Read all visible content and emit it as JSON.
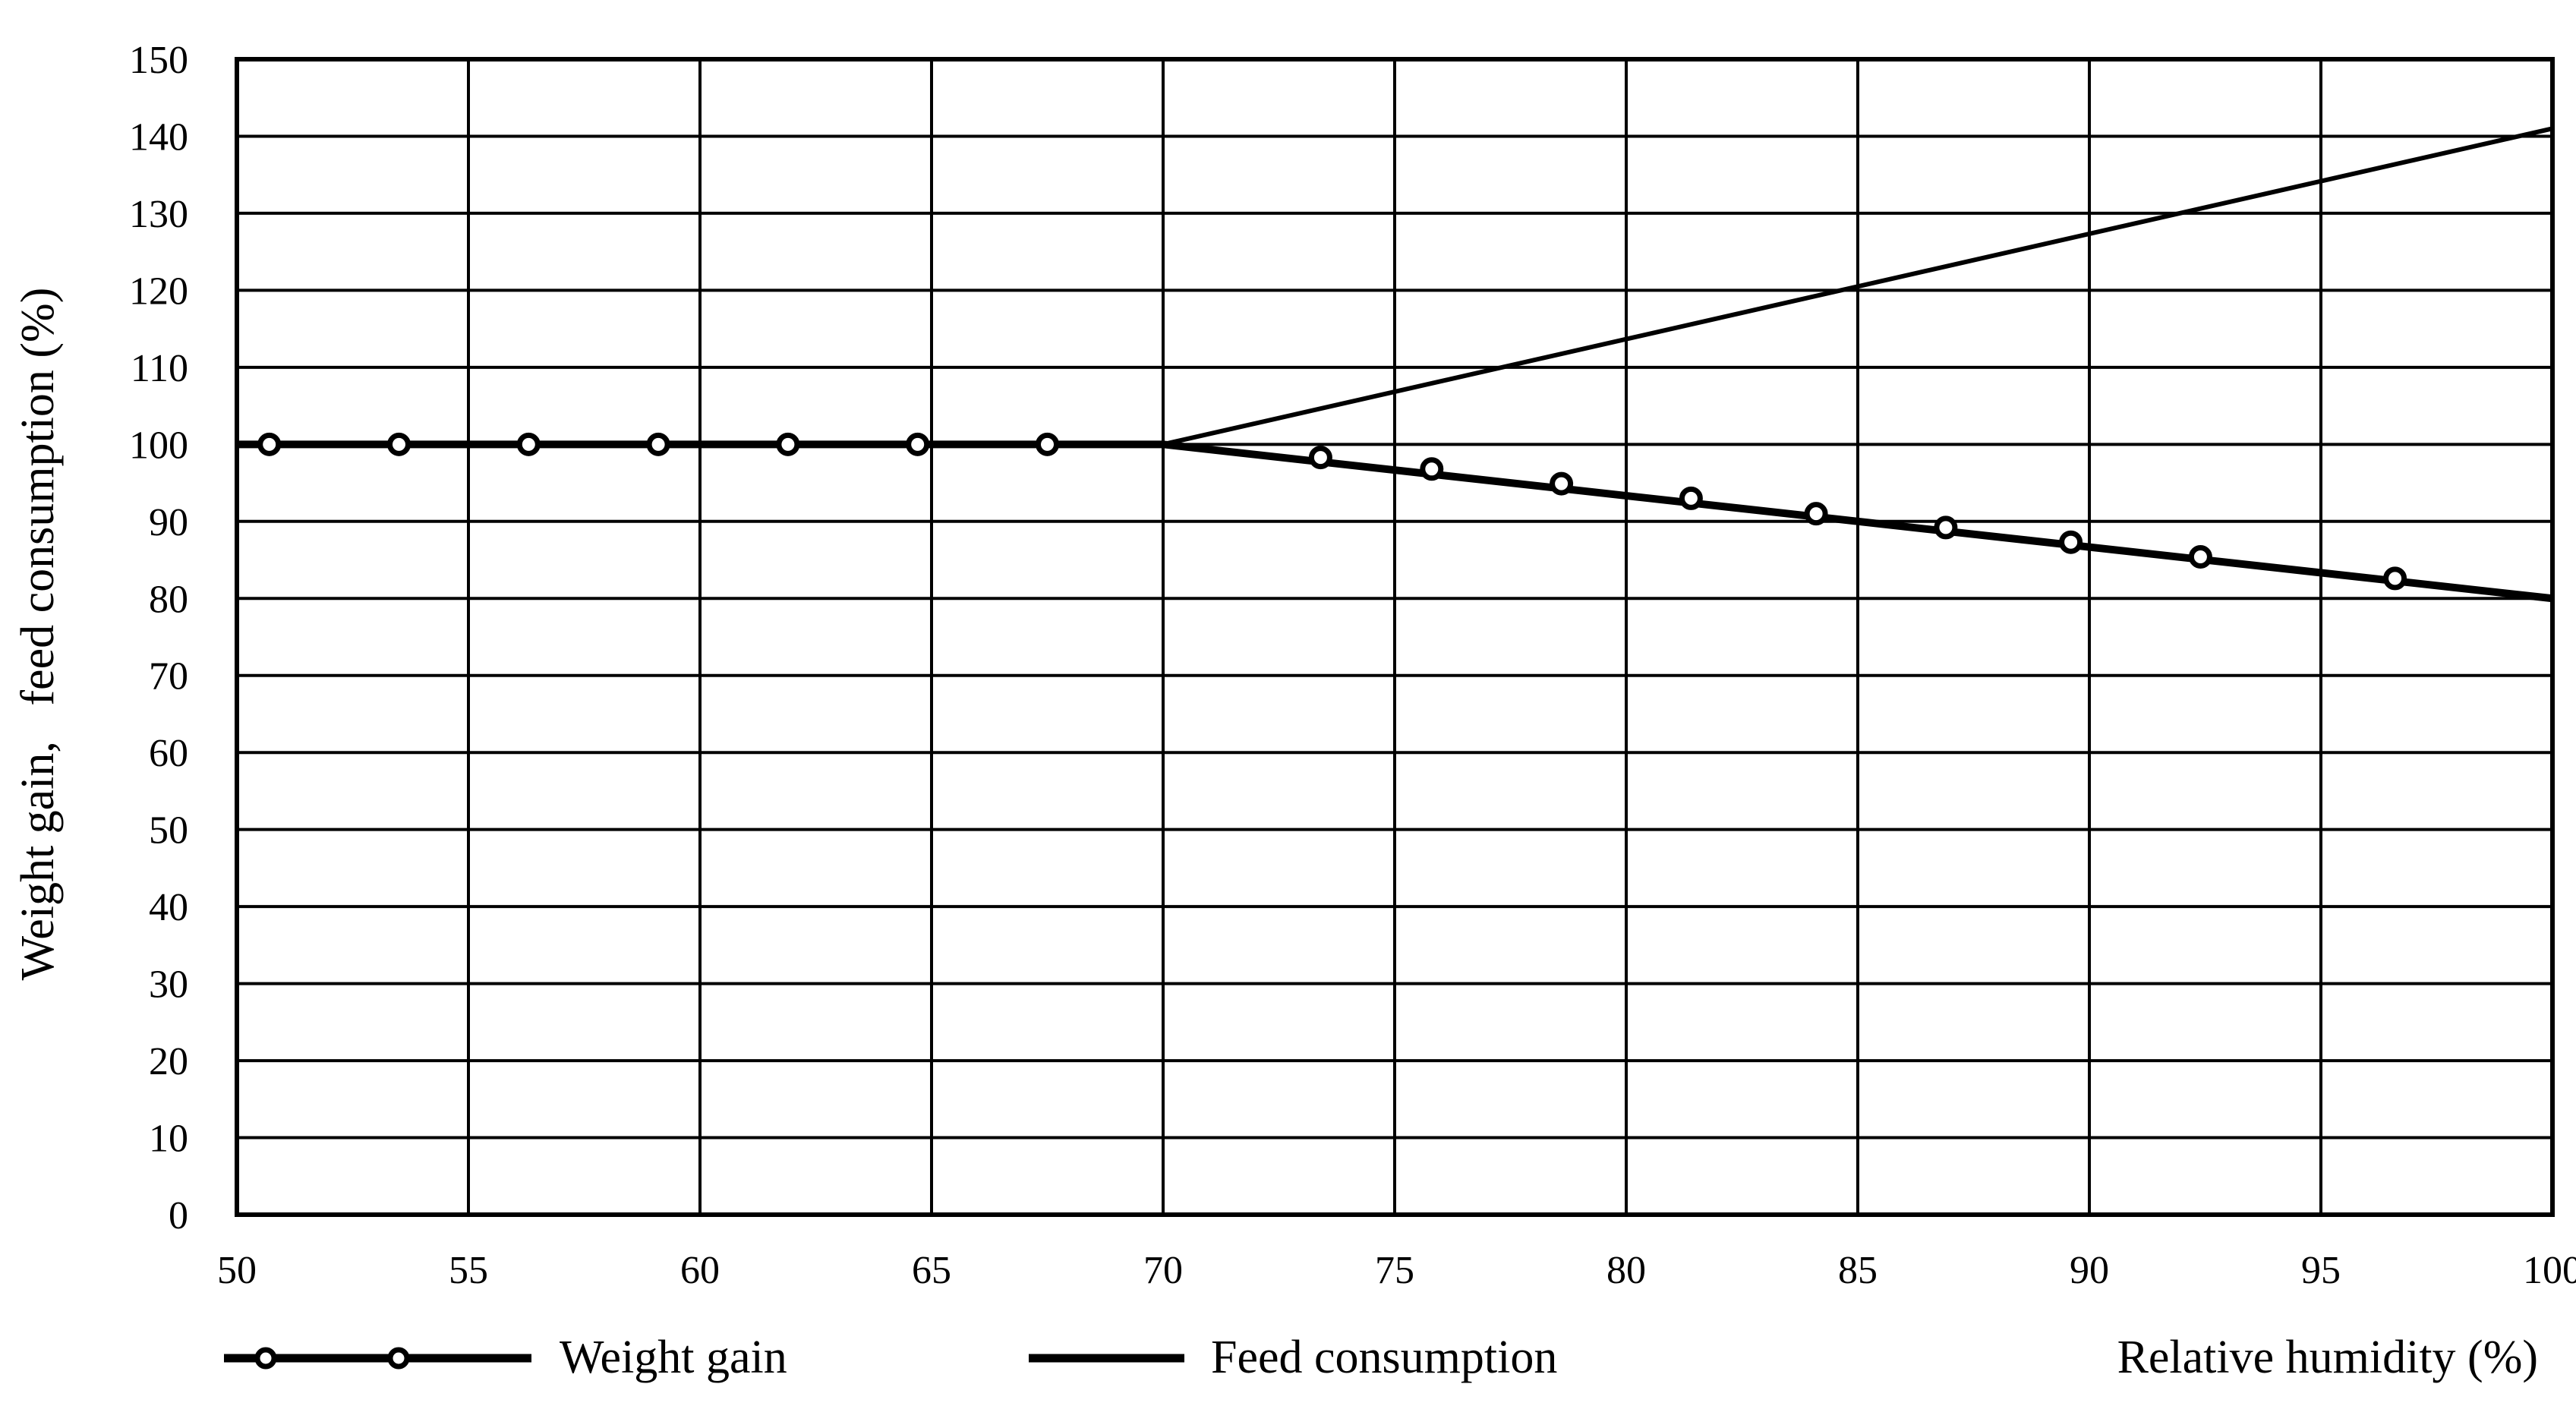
{
  "chart_data": {
    "type": "line",
    "title": "",
    "xlabel": "Relative humidity (%)",
    "ylabel": "Weight gain,   feed consumption (%)",
    "xlim": [
      50,
      100
    ],
    "ylim": [
      0,
      150
    ],
    "x_ticks": [
      "50",
      "55",
      "60",
      "65",
      "70",
      "75",
      "80",
      "85",
      "90",
      "95",
      "100"
    ],
    "y_ticks": [
      "0",
      "10",
      "20",
      "30",
      "40",
      "50",
      "60",
      "70",
      "80",
      "90",
      "100",
      "110",
      "120",
      "130",
      "140",
      "150"
    ],
    "grid": true,
    "legend_position": "bottom",
    "series": [
      {
        "name": "Weight gain",
        "marker": "open-circle",
        "line_points": [
          {
            "x": 50,
            "y": 100
          },
          {
            "x": 70,
            "y": 100
          },
          {
            "x": 100,
            "y": 80
          }
        ],
        "markers": [
          {
            "x": 50.7,
            "y": 100
          },
          {
            "x": 53.5,
            "y": 100
          },
          {
            "x": 56.3,
            "y": 100
          },
          {
            "x": 59.1,
            "y": 100
          },
          {
            "x": 61.9,
            "y": 100
          },
          {
            "x": 64.7,
            "y": 100
          },
          {
            "x": 67.5,
            "y": 100
          },
          {
            "x": 73.4,
            "y": 98.3
          },
          {
            "x": 75.8,
            "y": 96.8
          },
          {
            "x": 78.6,
            "y": 94.9
          },
          {
            "x": 81.4,
            "y": 93.0
          },
          {
            "x": 84.1,
            "y": 91.0
          },
          {
            "x": 86.9,
            "y": 89.2
          },
          {
            "x": 89.6,
            "y": 87.3
          },
          {
            "x": 92.4,
            "y": 85.4
          },
          {
            "x": 96.6,
            "y": 82.6
          }
        ]
      },
      {
        "name": "Feed consumption",
        "marker": "none",
        "line_points": [
          {
            "x": 50,
            "y": 100
          },
          {
            "x": 70,
            "y": 100
          },
          {
            "x": 100,
            "y": 141
          }
        ]
      }
    ]
  }
}
